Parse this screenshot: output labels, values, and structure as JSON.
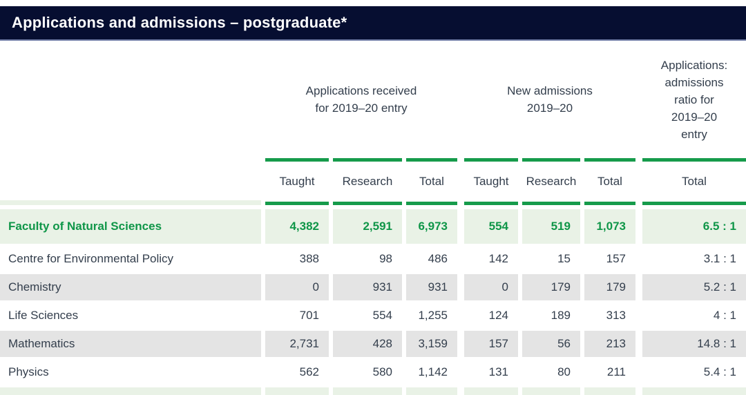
{
  "title_bar": {
    "title": "Applications and admissions – postgraduate*"
  },
  "colors": {
    "title_bar_bg": "#060e31",
    "title_bar_border": "#717da6",
    "accent_green": "#169b4b",
    "highlight_row_bg": "#e9f2e6",
    "highlight_row_text": "#0f9648",
    "striped_row_bg": "#e4e4e4",
    "body_text": "#333e4c"
  },
  "table": {
    "groups": [
      {
        "label": "Applications received\nfor 2019–20 entry"
      },
      {
        "label": "New admissions\n2019–20"
      },
      {
        "label": "Applications:\nadmissions\nratio for\n2019–20\nentry"
      }
    ],
    "subheaders": [
      "Taught",
      "Research",
      "Total",
      "Taught",
      "Research",
      "Total",
      "Total"
    ],
    "rows": [
      {
        "label": "Faculty of Natural Sciences",
        "highlight": true,
        "values": [
          "4,382",
          "2,591",
          "6,973",
          "554",
          "519",
          "1,073",
          "6.5 : 1"
        ]
      },
      {
        "label": "Centre for Environmental Policy",
        "highlight": false,
        "values": [
          "388",
          "98",
          "486",
          "142",
          "15",
          "157",
          "3.1 : 1"
        ]
      },
      {
        "label": "Chemistry",
        "highlight": false,
        "values": [
          "0",
          "931",
          "931",
          "0",
          "179",
          "179",
          "5.2 : 1"
        ]
      },
      {
        "label": "Life Sciences",
        "highlight": false,
        "values": [
          "701",
          "554",
          "1,255",
          "124",
          "189",
          "313",
          "4 : 1"
        ]
      },
      {
        "label": "Mathematics",
        "highlight": false,
        "values": [
          "2,731",
          "428",
          "3,159",
          "157",
          "56",
          "213",
          "14.8 : 1"
        ]
      },
      {
        "label": "Physics",
        "highlight": false,
        "values": [
          "562",
          "580",
          "1,142",
          "131",
          "80",
          "211",
          "5.4 : 1"
        ]
      }
    ]
  }
}
